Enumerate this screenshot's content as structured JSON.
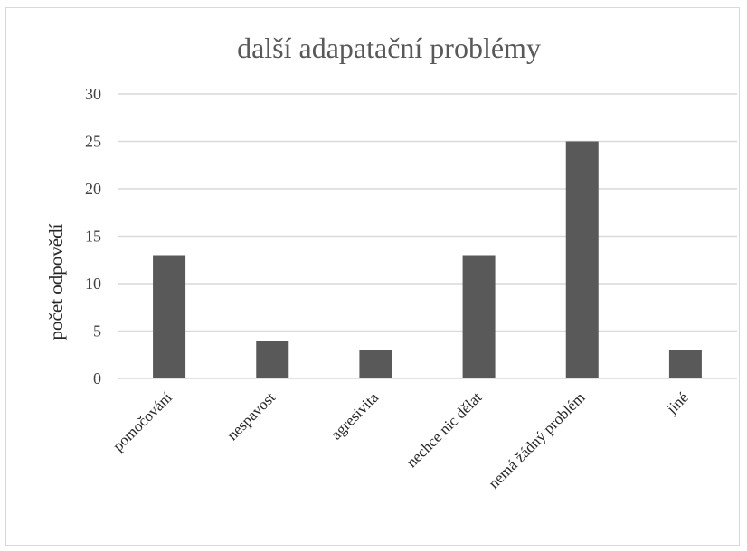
{
  "chart_data": {
    "type": "bar",
    "title": "další adapatační problémy",
    "xlabel": "",
    "ylabel": "počet odpovědí",
    "categories": [
      "pomočování",
      "nespavost",
      "agresivita",
      "nechce nic dělat",
      "nemá žádný problém",
      "jiné"
    ],
    "values": [
      13,
      4,
      3,
      13,
      25,
      3
    ],
    "ylim": [
      0,
      30
    ],
    "yticks": [
      0,
      5,
      10,
      15,
      20,
      25,
      30
    ],
    "grid": true,
    "legend": "none",
    "bar_color": "#595959"
  }
}
